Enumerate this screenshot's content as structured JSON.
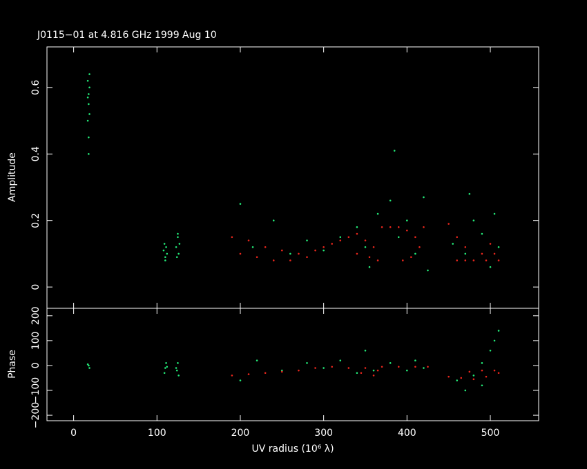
{
  "chart_data": [
    {
      "type": "scatter",
      "title": "J0115−01 at 4.816 GHz 1999 Aug 10",
      "ylabel": "Amplitude",
      "xlim": [
        -32,
        558
      ],
      "ylim": [
        -0.064,
        0.722
      ],
      "yticks": [
        0,
        0.2,
        0.4,
        0.6
      ],
      "series": [
        {
          "color": "#22e877",
          "x": [
            17,
            18,
            18,
            19,
            17,
            18,
            19,
            18,
            17,
            19,
            108,
            110,
            111,
            112,
            109,
            110,
            123,
            125,
            126,
            124,
            127,
            125,
            200,
            215,
            240,
            260,
            280,
            300,
            320,
            340,
            350,
            355,
            365,
            380,
            390,
            400,
            410,
            420,
            425,
            385,
            455,
            470,
            480,
            490,
            500,
            505,
            510,
            475
          ],
          "values": [
            0.62,
            0.58,
            0.55,
            0.6,
            0.5,
            0.45,
            0.52,
            0.4,
            0.57,
            0.64,
            0.11,
            0.09,
            0.12,
            0.1,
            0.13,
            0.08,
            0.12,
            0.15,
            0.1,
            0.09,
            0.13,
            0.16,
            0.25,
            0.12,
            0.2,
            0.1,
            0.14,
            0.11,
            0.15,
            0.18,
            0.12,
            0.06,
            0.22,
            0.26,
            0.15,
            0.2,
            0.1,
            0.27,
            0.05,
            0.41,
            0.13,
            0.1,
            0.2,
            0.16,
            0.06,
            0.22,
            0.12,
            0.28
          ]
        },
        {
          "color": "#e8261c",
          "x": [
            190,
            200,
            210,
            220,
            230,
            240,
            250,
            260,
            270,
            280,
            290,
            300,
            310,
            320,
            330,
            340,
            350,
            360,
            365,
            340,
            355,
            370,
            380,
            390,
            400,
            410,
            415,
            405,
            395,
            420,
            450,
            460,
            470,
            480,
            490,
            500,
            505,
            510,
            460,
            470,
            495
          ],
          "values": [
            0.15,
            0.1,
            0.14,
            0.09,
            0.12,
            0.08,
            0.11,
            0.08,
            0.1,
            0.09,
            0.11,
            0.12,
            0.13,
            0.14,
            0.15,
            0.16,
            0.14,
            0.12,
            0.08,
            0.1,
            0.09,
            0.18,
            0.18,
            0.18,
            0.17,
            0.15,
            0.12,
            0.09,
            0.08,
            0.18,
            0.19,
            0.15,
            0.12,
            0.08,
            0.1,
            0.13,
            0.1,
            0.08,
            0.08,
            0.08,
            0.08
          ]
        }
      ]
    },
    {
      "type": "scatter",
      "ylabel": "Phase",
      "xlabel": "UV radius  (10⁶ λ)",
      "xlim": [
        -32,
        558
      ],
      "xticks": [
        0,
        100,
        200,
        300,
        400,
        500
      ],
      "ylim": [
        -222,
        230
      ],
      "yticks": [
        {
          "value": -200,
          "label": "−200"
        },
        {
          "value": -100,
          "label": "−100"
        },
        0,
        100,
        200
      ],
      "series": [
        {
          "color": "#22e877",
          "x": [
            18,
            19,
            17,
            110,
            111,
            109,
            112,
            124,
            125,
            126,
            123,
            200,
            220,
            250,
            280,
            300,
            320,
            340,
            350,
            360,
            380,
            400,
            410,
            420,
            460,
            470,
            480,
            490,
            500,
            505,
            510,
            490
          ],
          "values": [
            0,
            -10,
            5,
            -10,
            10,
            -30,
            -5,
            -20,
            10,
            -40,
            -10,
            -60,
            20,
            -20,
            10,
            -10,
            20,
            -30,
            60,
            -20,
            10,
            -20,
            20,
            -10,
            -60,
            -100,
            -40,
            10,
            60,
            100,
            140,
            -80
          ]
        },
        {
          "color": "#e8261c",
          "x": [
            190,
            210,
            230,
            250,
            270,
            290,
            310,
            330,
            345,
            360,
            365,
            350,
            370,
            390,
            410,
            425,
            450,
            465,
            480,
            495,
            505,
            510,
            490,
            475
          ],
          "values": [
            -40,
            -35,
            -30,
            -25,
            -20,
            -10,
            -5,
            -10,
            -30,
            -40,
            -20,
            -10,
            -5,
            -5,
            -5,
            -5,
            -45,
            -50,
            -55,
            -45,
            -20,
            -30,
            -20,
            -25
          ]
        }
      ]
    }
  ]
}
